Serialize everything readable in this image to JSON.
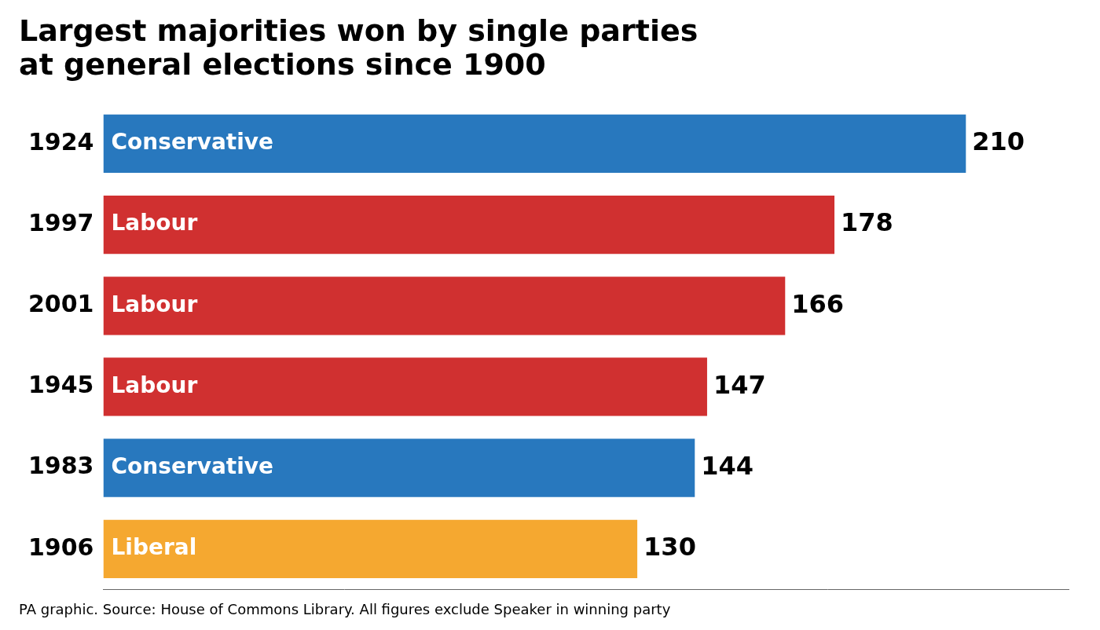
{
  "chart_data": {
    "type": "bar",
    "orientation": "horizontal",
    "title": "Largest majorities won by single parties\nat general elections since 1900",
    "categories": [
      "1924",
      "1997",
      "2001",
      "1945",
      "1983",
      "1906"
    ],
    "values": [
      210,
      178,
      166,
      147,
      144,
      130
    ],
    "colors": [
      "#2878BE",
      "#D03030",
      "#D03030",
      "#D03030",
      "#2878BE",
      "#F5A830"
    ],
    "annotations": [
      "Conservative",
      "Labour",
      "Labour",
      "Labour",
      "Conservative",
      "Liberal"
    ],
    "footer": "PA graphic. Source: House of Commons Library. All figures exclude Speaker in winning party",
    "xlim": [
      0,
      235
    ],
    "data_labels": true,
    "tick_labels": "y",
    "grid": false
  }
}
